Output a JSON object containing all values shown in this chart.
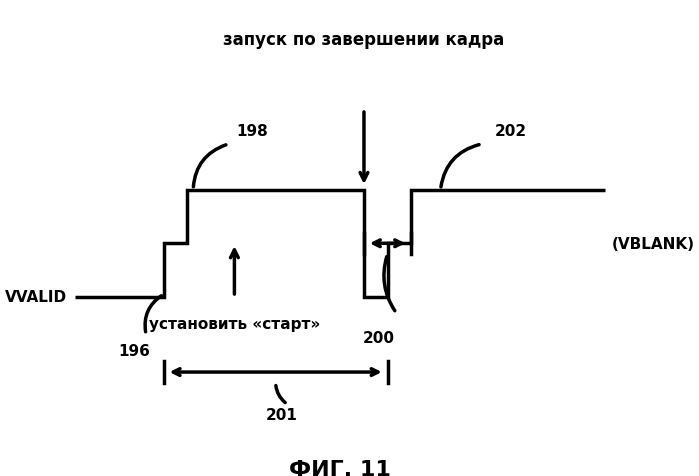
{
  "title": "ФИГ. 11",
  "top_annotation": "запуск по завершении кадра",
  "set_start_label": "установить «старт»",
  "vvalid_label": "VVALID",
  "vblank_label": "(VBLANK)",
  "label_196": "196",
  "label_198": "198",
  "label_200": "200",
  "label_201": "201",
  "label_202": "202",
  "background_color": "#ffffff",
  "line_color": "#000000",
  "line_width": 2.5
}
